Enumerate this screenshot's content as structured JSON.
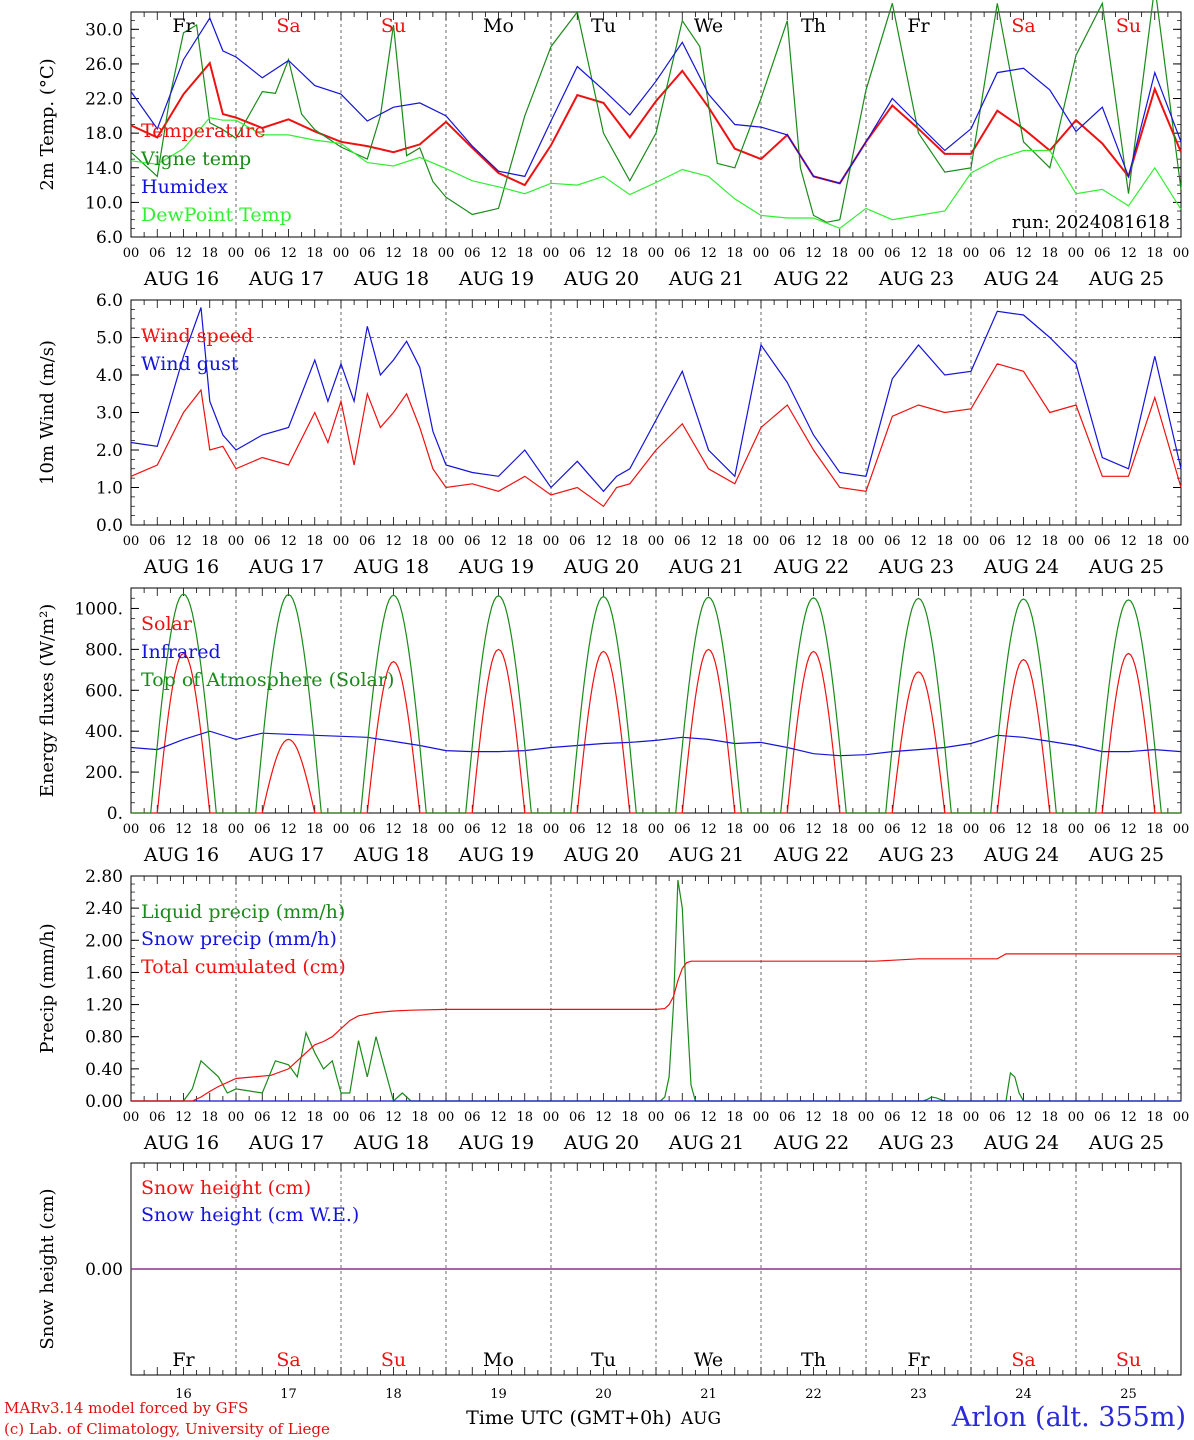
{
  "chart_data": [
    {
      "type": "line",
      "ylabel": "2m Temp. (°C)",
      "ylim": [
        6.0,
        32.0
      ],
      "yticks": [
        "30.0",
        "26.0",
        "22.0",
        "18.0",
        "14.0",
        "10.0",
        "6.0"
      ],
      "annotation": "run: 2024081618",
      "x_unit": "hours since 2024-08-16 00 UTC",
      "series": [
        {
          "name": "Temperature",
          "color": "#ee1111",
          "x": [
            0,
            6,
            12,
            18,
            21,
            24,
            30,
            36,
            42,
            48,
            54,
            60,
            66,
            72,
            78,
            84,
            90,
            96,
            102,
            108,
            114,
            120,
            126,
            132,
            138,
            144,
            150,
            156,
            162,
            168,
            174,
            180,
            186,
            192,
            198,
            204,
            210,
            216,
            222,
            228,
            234,
            240
          ],
          "values": [
            18.9,
            17.5,
            22.5,
            26.1,
            20.2,
            19.8,
            18.6,
            19.6,
            18.2,
            17.0,
            16.5,
            15.8,
            16.7,
            19.3,
            16.3,
            13.4,
            12.0,
            16.6,
            22.4,
            21.5,
            17.5,
            21.7,
            25.2,
            21.0,
            16.2,
            15.0,
            17.8,
            13.0,
            12.2,
            17.0,
            21.2,
            18.5,
            15.6,
            15.6,
            20.6,
            18.5,
            16.0,
            19.5,
            16.8,
            13.0,
            23.1,
            15.8
          ]
        },
        {
          "name": "Vigne temp",
          "color": "#1a8a1a",
          "x": [
            0,
            6,
            9,
            12,
            15,
            18,
            21,
            24,
            30,
            33,
            36,
            39,
            42,
            48,
            54,
            57,
            60,
            63,
            66,
            69,
            72,
            78,
            84,
            90,
            96,
            102,
            108,
            114,
            120,
            126,
            130,
            134,
            138,
            144,
            150,
            153,
            156,
            159,
            162,
            168,
            174,
            180,
            186,
            192,
            198,
            204,
            210,
            216,
            222,
            228,
            234,
            240
          ],
          "values": [
            15.8,
            13.0,
            22.5,
            29.6,
            30.5,
            19.2,
            18.4,
            17.4,
            22.8,
            22.6,
            26.5,
            20.2,
            18.4,
            16.4,
            15.0,
            20.0,
            30.5,
            15.4,
            16.3,
            12.4,
            10.6,
            8.6,
            9.3,
            20.0,
            28.0,
            32.0,
            18.0,
            12.5,
            18.0,
            31.0,
            28.0,
            14.5,
            14.0,
            22.0,
            31.0,
            14.0,
            8.5,
            7.7,
            8.0,
            23.0,
            33.0,
            18.0,
            13.5,
            14.0,
            33.0,
            17.0,
            14.0,
            27.0,
            33.0,
            11.0,
            35.0,
            11.5
          ]
        },
        {
          "name": "Humidex",
          "color": "#1414d8",
          "x": [
            0,
            6,
            12,
            18,
            21,
            24,
            30,
            36,
            42,
            48,
            54,
            60,
            66,
            72,
            78,
            84,
            90,
            96,
            102,
            108,
            114,
            120,
            126,
            132,
            138,
            144,
            150,
            156,
            162,
            168,
            174,
            180,
            186,
            192,
            198,
            204,
            210,
            216,
            222,
            228,
            234,
            240
          ],
          "values": [
            22.8,
            18.5,
            26.5,
            31.3,
            27.5,
            26.8,
            24.4,
            26.4,
            23.5,
            22.5,
            19.4,
            21.0,
            21.5,
            20.0,
            16.5,
            13.6,
            13.0,
            19.4,
            25.7,
            23.0,
            20.1,
            24.0,
            28.5,
            22.5,
            19.0,
            18.7,
            17.8,
            13.0,
            12.2,
            17.0,
            22.0,
            19.0,
            16.0,
            18.5,
            25.0,
            25.5,
            23.0,
            18.2,
            21.0,
            13.0,
            25.0,
            17.0
          ]
        },
        {
          "name": "DewPoint Temp",
          "color": "#33ee33",
          "x": [
            0,
            6,
            12,
            18,
            21,
            24,
            30,
            36,
            42,
            48,
            54,
            60,
            66,
            72,
            78,
            84,
            90,
            96,
            102,
            108,
            114,
            120,
            126,
            132,
            138,
            144,
            150,
            156,
            162,
            168,
            174,
            180,
            186,
            192,
            198,
            204,
            210,
            216,
            222,
            228,
            234,
            240
          ],
          "values": [
            14.8,
            14.4,
            16.2,
            19.8,
            19.5,
            19.5,
            17.8,
            17.8,
            17.2,
            16.8,
            14.6,
            14.2,
            15.2,
            13.9,
            12.5,
            11.8,
            11.0,
            12.2,
            12.0,
            13.0,
            10.9,
            12.3,
            13.8,
            13.0,
            10.4,
            8.5,
            8.2,
            8.2,
            7.0,
            9.3,
            8.0,
            8.5,
            9.0,
            13.4,
            15.0,
            16.0,
            16.0,
            11.0,
            11.5,
            9.6,
            14.0,
            9.2
          ]
        }
      ]
    },
    {
      "type": "line",
      "ylabel": "10m Wind (m/s)",
      "ylim": [
        0.0,
        6.0
      ],
      "yticks": [
        "6.0",
        "5.0",
        "4.0",
        "3.0",
        "2.0",
        "1.0",
        "0.0"
      ],
      "threshold": 5.0,
      "x_unit": "hours since 2024-08-16 00 UTC",
      "series": [
        {
          "name": "Wind speed",
          "color": "#ee1111",
          "x": [
            0,
            6,
            12,
            16,
            18,
            21,
            24,
            30,
            36,
            42,
            45,
            48,
            51,
            54,
            57,
            60,
            63,
            66,
            69,
            72,
            78,
            84,
            90,
            96,
            102,
            108,
            111,
            114,
            120,
            126,
            132,
            138,
            144,
            150,
            156,
            162,
            168,
            174,
            180,
            186,
            192,
            198,
            204,
            210,
            216,
            222,
            228,
            234,
            240
          ],
          "values": [
            1.3,
            1.6,
            3.0,
            3.6,
            2.0,
            2.1,
            1.5,
            1.8,
            1.6,
            3.0,
            2.2,
            3.3,
            1.6,
            3.5,
            2.6,
            3.0,
            3.5,
            2.6,
            1.5,
            1.0,
            1.1,
            0.9,
            1.3,
            0.8,
            1.0,
            0.5,
            1.0,
            1.1,
            2.0,
            2.7,
            1.5,
            1.1,
            2.6,
            3.2,
            2.0,
            1.0,
            0.9,
            2.9,
            3.2,
            3.0,
            3.1,
            4.3,
            4.1,
            3.0,
            3.2,
            1.3,
            1.3,
            3.4,
            1.0
          ]
        },
        {
          "name": "Wind gust",
          "color": "#1414d8",
          "x": [
            0,
            6,
            12,
            16,
            18,
            21,
            24,
            30,
            36,
            42,
            45,
            48,
            51,
            54,
            57,
            60,
            63,
            66,
            69,
            72,
            78,
            84,
            90,
            96,
            102,
            108,
            111,
            114,
            120,
            126,
            132,
            138,
            144,
            150,
            156,
            162,
            168,
            174,
            180,
            186,
            192,
            198,
            204,
            210,
            216,
            222,
            228,
            234,
            240
          ],
          "values": [
            2.2,
            2.1,
            4.5,
            5.8,
            3.3,
            2.4,
            2.0,
            2.4,
            2.6,
            4.4,
            3.3,
            4.3,
            3.3,
            5.3,
            4.0,
            4.4,
            4.9,
            4.2,
            2.5,
            1.6,
            1.4,
            1.3,
            2.0,
            1.0,
            1.7,
            0.9,
            1.3,
            1.5,
            2.8,
            4.1,
            2.0,
            1.3,
            4.8,
            3.8,
            2.4,
            1.4,
            1.3,
            3.9,
            4.8,
            4.0,
            4.1,
            5.7,
            5.6,
            5.0,
            4.3,
            1.8,
            1.5,
            4.5,
            1.5
          ]
        }
      ]
    },
    {
      "type": "line",
      "ylabel": "Energy fluxes (W/m²)",
      "ylim": [
        0,
        1100
      ],
      "yticks": [
        "1000.",
        "800.",
        "600.",
        "400.",
        "200.",
        "0."
      ],
      "x_unit": "hours since 2024-08-16 00 UTC",
      "series": [
        {
          "name": "Solar",
          "color": "#ee1111",
          "daily_peaks": [
            780,
            360,
            740,
            800,
            790,
            800,
            790,
            690,
            750,
            780
          ]
        },
        {
          "name": "Infrared",
          "color": "#1414d8",
          "x": [
            0,
            6,
            12,
            18,
            24,
            30,
            36,
            42,
            48,
            54,
            60,
            66,
            72,
            78,
            84,
            90,
            96,
            102,
            108,
            114,
            120,
            126,
            132,
            138,
            144,
            150,
            156,
            162,
            168,
            174,
            180,
            186,
            192,
            198,
            204,
            210,
            216,
            222,
            228,
            234,
            240
          ],
          "values": [
            320,
            310,
            360,
            400,
            360,
            390,
            385,
            380,
            375,
            370,
            350,
            330,
            305,
            300,
            300,
            305,
            320,
            330,
            340,
            345,
            355,
            370,
            360,
            340,
            345,
            320,
            290,
            280,
            285,
            300,
            310,
            320,
            340,
            380,
            370,
            350,
            330,
            300,
            300,
            310,
            300
          ]
        },
        {
          "name": "Top of Atmosphere (Solar)",
          "color": "#1a8a1a",
          "daily_peaks": [
            1070,
            1068,
            1065,
            1062,
            1058,
            1055,
            1052,
            1049,
            1046,
            1042
          ]
        }
      ]
    },
    {
      "type": "line",
      "ylabel": "Precip (mm/h)",
      "ylim": [
        0.0,
        2.8
      ],
      "yticks": [
        "2.80",
        "2.40",
        "2.00",
        "1.60",
        "1.20",
        "0.80",
        "0.40",
        "0.00"
      ],
      "x_unit": "hours since 2024-08-16 00 UTC",
      "series": [
        {
          "name": "Liquid precip (mm/h)",
          "color": "#1a8a1a",
          "x": [
            0,
            12,
            14,
            16,
            18,
            20,
            22,
            24,
            30,
            33,
            36,
            38,
            40,
            42,
            44,
            46,
            48,
            50,
            52,
            54,
            56,
            60,
            62,
            64,
            120,
            121,
            122,
            123,
            124,
            125,
            126,
            127,
            128,
            129,
            130,
            180,
            181,
            182,
            183,
            184,
            185,
            186,
            187,
            188,
            198,
            199,
            200,
            201,
            202,
            203,
            204,
            240
          ],
          "values": [
            0,
            0,
            0.15,
            0.5,
            0.4,
            0.3,
            0.1,
            0.15,
            0.1,
            0.5,
            0.45,
            0.3,
            0.85,
            0.6,
            0.4,
            0.5,
            0.1,
            0.1,
            0.75,
            0.3,
            0.8,
            0,
            0.1,
            0,
            0,
            0,
            0.05,
            0.3,
            1.2,
            2.75,
            2.4,
            1.2,
            0.2,
            0,
            0,
            0,
            0,
            0.02,
            0.05,
            0.04,
            0.02,
            0,
            0,
            0,
            0,
            0,
            0,
            0.35,
            0.3,
            0.1,
            0,
            0
          ]
        },
        {
          "name": "Snow precip (mm/h)",
          "color": "#1414d8",
          "x": [
            0,
            240
          ],
          "values": [
            0,
            0
          ]
        },
        {
          "name": "Total cumulated (cm)",
          "color": "#ee1111",
          "x": [
            0,
            14,
            16,
            18,
            20,
            24,
            28,
            32,
            36,
            38,
            40,
            42,
            44,
            46,
            48,
            50,
            52,
            56,
            60,
            64,
            72,
            120,
            122,
            123,
            124,
            125,
            126,
            127,
            128,
            130,
            170,
            180,
            198,
            200,
            240
          ],
          "values": [
            0,
            0,
            0.05,
            0.12,
            0.18,
            0.28,
            0.3,
            0.32,
            0.4,
            0.5,
            0.6,
            0.7,
            0.74,
            0.8,
            0.9,
            1.0,
            1.06,
            1.1,
            1.12,
            1.13,
            1.14,
            1.14,
            1.15,
            1.2,
            1.3,
            1.5,
            1.65,
            1.72,
            1.74,
            1.74,
            1.74,
            1.77,
            1.77,
            1.83,
            1.83
          ]
        }
      ]
    },
    {
      "type": "line",
      "ylabel": "Snow height (cm)",
      "yticks": [
        "0.00"
      ],
      "x_unit": "hours since 2024-08-16 00 UTC",
      "series": [
        {
          "name": "Snow height (cm)",
          "color": "#ee1111",
          "x": [
            0,
            240
          ],
          "values": [
            0,
            0
          ]
        },
        {
          "name": "Snow height (cm W.E.)",
          "color": "#1414d8",
          "x": [
            0,
            240
          ],
          "values": [
            0,
            0
          ]
        }
      ]
    }
  ],
  "axes": {
    "hour_ticks": [
      "00",
      "06",
      "12",
      "18"
    ],
    "hour_end": "00",
    "date_labels": [
      "AUG 16",
      "AUG 17",
      "AUG 18",
      "AUG 19",
      "AUG 20",
      "AUG 21",
      "AUG 22",
      "AUG 23",
      "AUG 24",
      "AUG 25"
    ],
    "weekdays": [
      "Fr",
      "Sa",
      "Su",
      "Mo",
      "Tu",
      "We",
      "Th",
      "Fr",
      "Sa",
      "Su"
    ],
    "weekend_flags": [
      false,
      true,
      true,
      false,
      false,
      false,
      false,
      false,
      true,
      true
    ],
    "day_numbers": [
      "16",
      "17",
      "18",
      "19",
      "20",
      "21",
      "22",
      "23",
      "24",
      "25"
    ],
    "bottom_xlabel": "Time UTC (GMT+0h)",
    "month_label": "AUG"
  },
  "colors": {
    "red": "#ee1111",
    "green": "#1a8a1a",
    "blue": "#1414d8",
    "lightgreen": "#33ee33",
    "purple": "#7a2a9a",
    "weekend": "#ee1111"
  },
  "footer": {
    "credit_line1": "MARv3.14 model forced by GFS",
    "credit_line2": "(c) Lab. of Climatology, University of Liege",
    "station": "Arlon (alt. 355m)"
  }
}
